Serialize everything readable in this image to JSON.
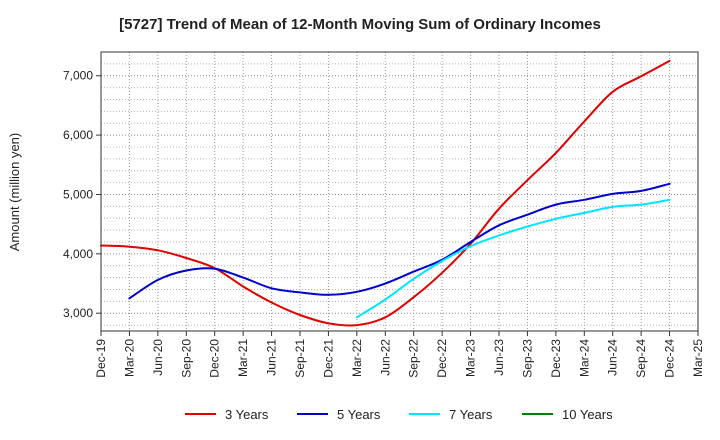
{
  "chart_data": {
    "type": "line",
    "title": "[5727]  Trend of Mean of 12-Month Moving Sum of Ordinary Incomes",
    "xlabel": "",
    "ylabel": "Amount (million yen)",
    "ylim": [
      2700,
      7400
    ],
    "yticks": [
      3000,
      4000,
      5000,
      6000,
      7000
    ],
    "ytick_labels": [
      "3,000",
      "4,000",
      "5,000",
      "6,000",
      "7,000"
    ],
    "categories": [
      "Dec-19",
      "Mar-20",
      "Jun-20",
      "Sep-20",
      "Dec-20",
      "Mar-21",
      "Jun-21",
      "Sep-21",
      "Dec-21",
      "Mar-22",
      "Jun-22",
      "Sep-22",
      "Dec-22",
      "Mar-23",
      "Jun-23",
      "Sep-23",
      "Dec-23",
      "Mar-24",
      "Jun-24",
      "Sep-24",
      "Dec-24",
      "Mar-25"
    ],
    "grid": true,
    "legend_position": "bottom",
    "series": [
      {
        "name": "3 Years",
        "color": "#e00000",
        "values": [
          4140,
          4120,
          4060,
          3930,
          3760,
          3450,
          3180,
          2970,
          2830,
          2800,
          2930,
          3270,
          3680,
          4170,
          4760,
          5240,
          5700,
          6230,
          6730,
          6990,
          7250,
          null
        ]
      },
      {
        "name": "5 Years",
        "color": "#0000cc",
        "values": [
          null,
          3250,
          3560,
          3720,
          3750,
          3600,
          3420,
          3350,
          3310,
          3360,
          3500,
          3700,
          3900,
          4200,
          4480,
          4660,
          4830,
          4910,
          5010,
          5060,
          5180,
          null
        ]
      },
      {
        "name": "7 Years",
        "color": "#00e5ff",
        "values": [
          null,
          null,
          null,
          null,
          null,
          null,
          null,
          null,
          null,
          2930,
          3230,
          3580,
          3880,
          4130,
          4310,
          4460,
          4590,
          4690,
          4790,
          4830,
          4910,
          null
        ]
      },
      {
        "name": "10 Years",
        "color": "#008000",
        "values": [
          null,
          null,
          null,
          null,
          null,
          null,
          null,
          null,
          null,
          null,
          null,
          null,
          null,
          null,
          null,
          null,
          null,
          null,
          null,
          null,
          null,
          null
        ]
      }
    ]
  }
}
